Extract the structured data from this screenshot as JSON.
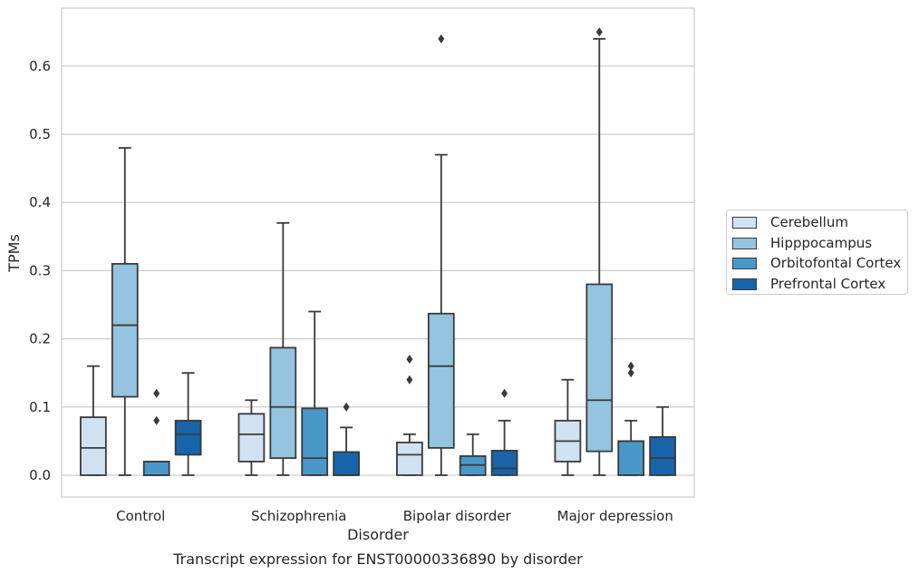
{
  "chart_data": {
    "type": "box",
    "title": "Transcript expression for ENST00000336890 by disorder",
    "xlabel": "Disorder",
    "ylabel": "TPMs",
    "ylim": [
      -0.032,
      0.685
    ],
    "yticks": [
      "0.0",
      "0.1",
      "0.2",
      "0.3",
      "0.4",
      "0.5",
      "0.6"
    ],
    "ytick_values": [
      0.0,
      0.1,
      0.2,
      0.3,
      0.4,
      0.5,
      0.6
    ],
    "categories": [
      "Control",
      "Schizophrenia",
      "Bipolar disorder",
      "Major depression"
    ],
    "grid": true,
    "legend_position": "right",
    "series": [
      {
        "name": "Cerebellum",
        "color": "#d0e1f2",
        "boxes": [
          {
            "whisker_low": 0.0,
            "q1": 0.0,
            "median": 0.04,
            "q3": 0.085,
            "whisker_high": 0.16,
            "outliers": []
          },
          {
            "whisker_low": 0.0,
            "q1": 0.02,
            "median": 0.06,
            "q3": 0.09,
            "whisker_high": 0.11,
            "outliers": []
          },
          {
            "whisker_low": 0.0,
            "q1": 0.0,
            "median": 0.03,
            "q3": 0.048,
            "whisker_high": 0.06,
            "outliers": [
              0.14,
              0.17
            ]
          },
          {
            "whisker_low": 0.0,
            "q1": 0.02,
            "median": 0.05,
            "q3": 0.08,
            "whisker_high": 0.14,
            "outliers": []
          }
        ]
      },
      {
        "name": "Hipppocampus",
        "color": "#94c4df",
        "boxes": [
          {
            "whisker_low": 0.0,
            "q1": 0.115,
            "median": 0.22,
            "q3": 0.31,
            "whisker_high": 0.48,
            "outliers": []
          },
          {
            "whisker_low": 0.0,
            "q1": 0.025,
            "median": 0.1,
            "q3": 0.187,
            "whisker_high": 0.37,
            "outliers": []
          },
          {
            "whisker_low": 0.0,
            "q1": 0.04,
            "median": 0.16,
            "q3": 0.237,
            "whisker_high": 0.47,
            "outliers": [
              0.64
            ]
          },
          {
            "whisker_low": 0.0,
            "q1": 0.035,
            "median": 0.11,
            "q3": 0.28,
            "whisker_high": 0.64,
            "outliers": [
              0.65
            ]
          }
        ]
      },
      {
        "name": "Orbitofontal Cortex",
        "color": "#4a98c9",
        "boxes": [
          {
            "whisker_low": 0.0,
            "q1": 0.0,
            "median": 0.0,
            "q3": 0.02,
            "whisker_high": 0.02,
            "outliers": [
              0.08,
              0.12
            ]
          },
          {
            "whisker_low": 0.0,
            "q1": 0.0,
            "median": 0.025,
            "q3": 0.098,
            "whisker_high": 0.24,
            "outliers": []
          },
          {
            "whisker_low": 0.0,
            "q1": 0.0,
            "median": 0.015,
            "q3": 0.028,
            "whisker_high": 0.06,
            "outliers": []
          },
          {
            "whisker_low": 0.0,
            "q1": 0.0,
            "median": 0.05,
            "q3": 0.05,
            "whisker_high": 0.08,
            "outliers": [
              0.15,
              0.16
            ]
          }
        ]
      },
      {
        "name": "Prefrontal Cortex",
        "color": "#1764ab",
        "boxes": [
          {
            "whisker_low": 0.0,
            "q1": 0.03,
            "median": 0.06,
            "q3": 0.08,
            "whisker_high": 0.15,
            "outliers": []
          },
          {
            "whisker_low": 0.0,
            "q1": 0.0,
            "median": 0.0,
            "q3": 0.034,
            "whisker_high": 0.07,
            "outliers": [
              0.1
            ]
          },
          {
            "whisker_low": 0.0,
            "q1": 0.0,
            "median": 0.01,
            "q3": 0.036,
            "whisker_high": 0.08,
            "outliers": [
              0.12
            ]
          },
          {
            "whisker_low": 0.0,
            "q1": 0.0,
            "median": 0.025,
            "q3": 0.056,
            "whisker_high": 0.1,
            "outliers": []
          }
        ]
      }
    ]
  }
}
